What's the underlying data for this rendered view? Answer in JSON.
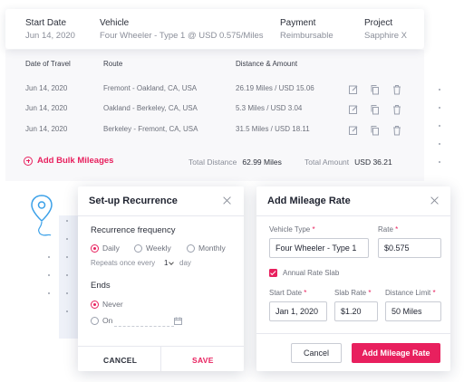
{
  "header": {
    "start_date_label": "Start Date",
    "start_date_value": "Jun 14, 2020",
    "vehicle_label": "Vehicle",
    "vehicle_value": "Four Wheeler - Type 1 @ USD 0.575/Miles",
    "payment_label": "Payment",
    "payment_value": "Reimbursable",
    "project_label": "Project",
    "project_value": "Sapphire X"
  },
  "table": {
    "columns": [
      "Date of Travel",
      "Route",
      "Distance & Amount"
    ],
    "rows": [
      {
        "date": "Jun 14, 2020",
        "route": "Fremont - Oakland, CA, USA",
        "amount": "26.19 Miles / USD 15.06"
      },
      {
        "date": "Jun 14, 2020",
        "route": "Oakland - Berkeley, CA, USA",
        "amount": "5.3 Miles / USD 3.04"
      },
      {
        "date": "Jun 14, 2020",
        "route": "Berkeley - Fremont, CA, USA",
        "amount": "31.5 Miles / USD 18.11"
      }
    ],
    "row_actions": [
      "edit-icon",
      "copy-icon",
      "trash-icon"
    ]
  },
  "footer": {
    "add_bulk_label": "Add Bulk Mileages",
    "total_distance_label": "Total Distance",
    "total_distance_value": "62.99 Miles",
    "total_amount_label": "Total Amount",
    "total_amount_value": "USD 36.21"
  },
  "recurrence": {
    "title": "Set-up Recurrence",
    "frequency_label": "Recurrence frequency",
    "options": [
      "Daily",
      "Weekly",
      "Monthly"
    ],
    "selected_option": "Daily",
    "repeats_prefix": "Repeats once every",
    "repeats_value": "1",
    "repeats_suffix": "day",
    "ends_label": "Ends",
    "ends_options": [
      "Never",
      "On"
    ],
    "ends_selected": "Never",
    "cancel_label": "CANCEL",
    "save_label": "SAVE"
  },
  "mileage_rate": {
    "title": "Add Mileage Rate",
    "vehicle_type_label": "Vehicle Type",
    "vehicle_type_value": "Four Wheeler -  Type 1",
    "rate_label": "Rate",
    "rate_value": "$0.575",
    "annual_slab_label": "Annual Rate Slab",
    "annual_slab_checked": true,
    "start_date_label": "Start Date",
    "start_date_value": "Jan 1, 2020",
    "slab_rate_label": "Slab Rate",
    "slab_rate_value": "$1.20",
    "distance_limit_label": "Distance Limit",
    "distance_limit_value": "50 Miles",
    "cancel_label": "Cancel",
    "submit_label": "Add Mileage Rate"
  },
  "colors": {
    "accent": "#e8205e",
    "pin": "#3aa0e8"
  }
}
